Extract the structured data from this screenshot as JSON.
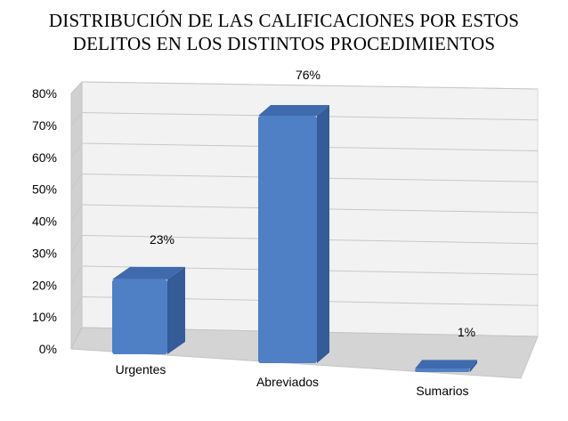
{
  "chart_data": {
    "type": "bar",
    "title_lines": [
      "DISTRIBUCIÓN DE LAS CALIFICACIONES POR ESTOS",
      "DELITOS EN LOS DISTINTOS PROCEDIMIENTOS"
    ],
    "categories": [
      "Urgentes",
      "Abreviados",
      "Sumarios"
    ],
    "values": [
      23,
      76,
      1
    ],
    "data_labels": [
      "23%",
      "76%",
      "1%"
    ],
    "ylim": [
      0,
      80
    ],
    "y_ticks": [
      "0%",
      "10%",
      "20%",
      "30%",
      "40%",
      "50%",
      "60%",
      "70%",
      "80%"
    ],
    "grid": true,
    "legend": "none",
    "style": "3d-perspective",
    "colors": {
      "bar": "#4f7fc4",
      "bar_top": "#3f6bae",
      "bar_side": "#345c99",
      "grid": "#c8c8c8",
      "wall": "#f2f2f2",
      "floor": "#d4d4d4"
    }
  }
}
